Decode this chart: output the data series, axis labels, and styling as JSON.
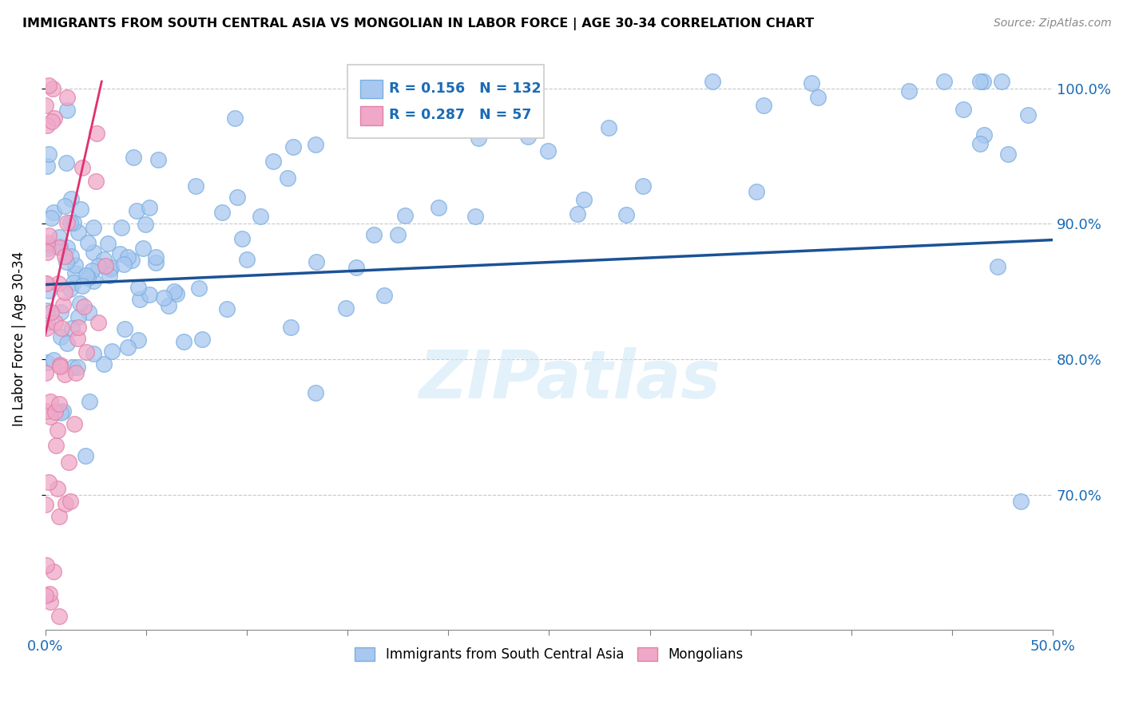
{
  "title": "IMMIGRANTS FROM SOUTH CENTRAL ASIA VS MONGOLIAN IN LABOR FORCE | AGE 30-34 CORRELATION CHART",
  "source": "Source: ZipAtlas.com",
  "ylabel": "In Labor Force | Age 30-34",
  "xmin": 0.0,
  "xmax": 0.5,
  "ymin": 0.6,
  "ymax": 1.03,
  "blue_R": 0.156,
  "blue_N": 132,
  "pink_R": 0.287,
  "pink_N": 57,
  "blue_color": "#a8c8f0",
  "pink_color": "#f0a8c8",
  "blue_edge_color": "#7aaee0",
  "pink_edge_color": "#e080a8",
  "blue_line_color": "#1a5296",
  "pink_line_color": "#e03070",
  "legend_R_color": "#1a6bb5",
  "watermark": "ZIPatlas",
  "blue_line_x0": 0.0,
  "blue_line_x1": 0.5,
  "blue_line_y0": 0.855,
  "blue_line_y1": 0.888,
  "pink_line_x0": 0.0,
  "pink_line_x1": 0.028,
  "pink_line_y0": 0.818,
  "pink_line_y1": 1.005
}
